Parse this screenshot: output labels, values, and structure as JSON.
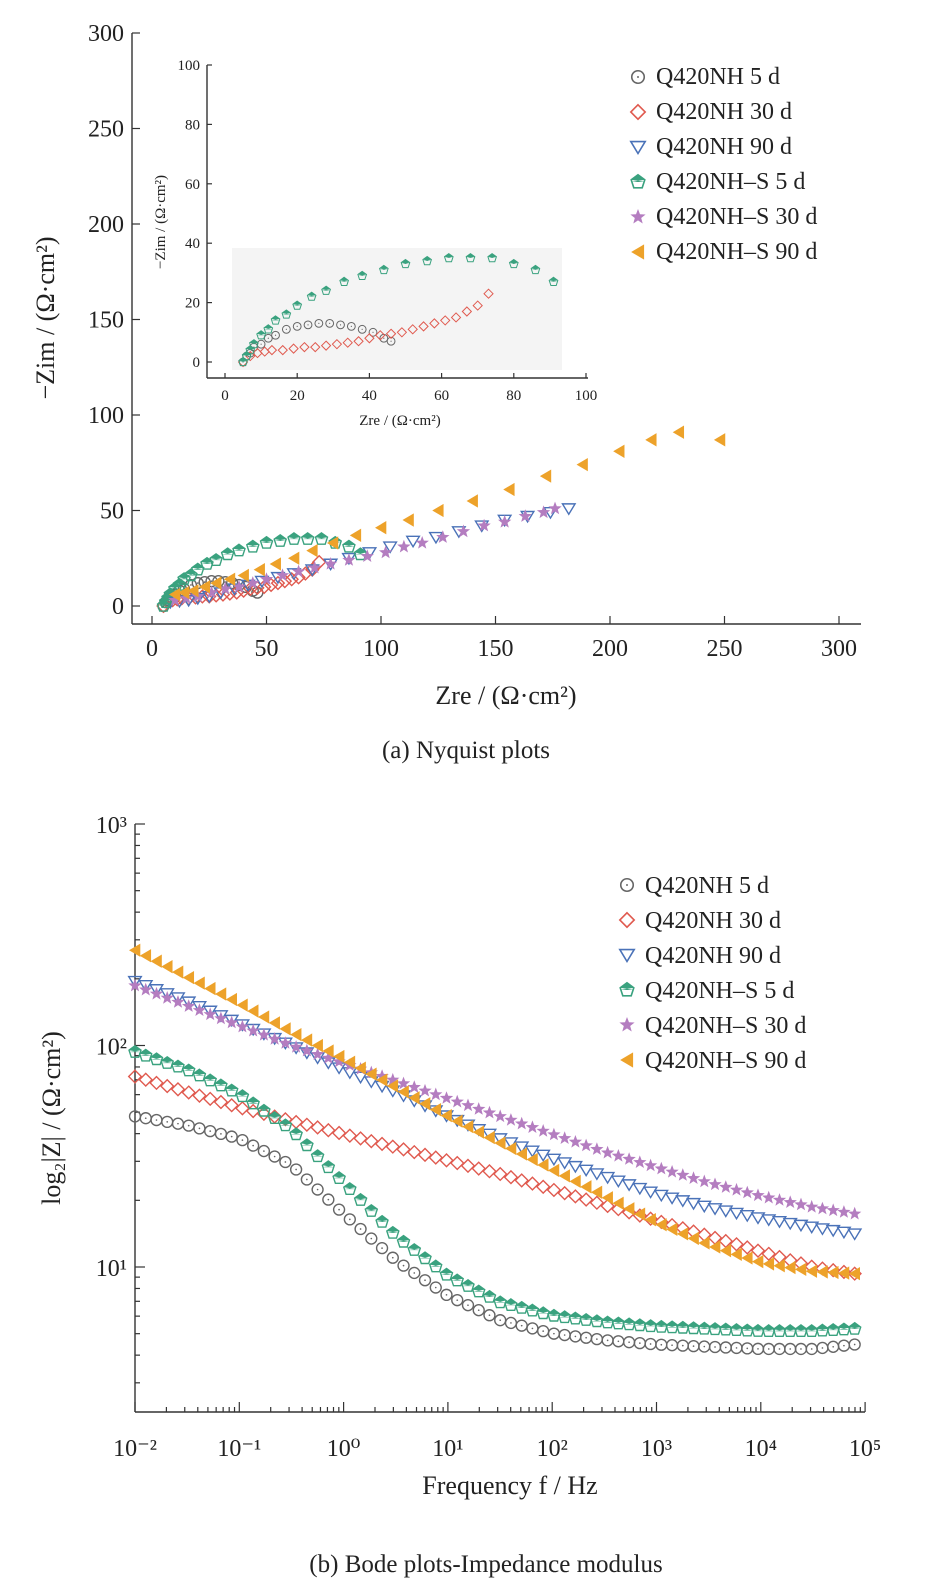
{
  "figure": {
    "caption_a": "(a) Nyquist plots",
    "caption_b": "(b) Bode plots-Impedance modulus"
  },
  "colors": {
    "Q420NH 5 d": "#666666",
    "Q420NH 30 d": "#e05a4f",
    "Q420NH 90 d": "#4a72b8",
    "Q420NH–S 5 d": "#3aa27f",
    "Q420NH–S 30 d": "#b47dc0",
    "Q420NH–S 90 d": "#eda22a"
  },
  "markers": {
    "Q420NH 5 d": "circle-open",
    "Q420NH 30 d": "diamond-open",
    "Q420NH 90 d": "triangle-down-open",
    "Q420NH–S 5 d": "pentagon-half-filled",
    "Q420NH–S 30 d": "star-filled",
    "Q420NH–S 90 d": "triangle-left-filled"
  },
  "chart_data": [
    {
      "type": "scatter",
      "id": "nyquist-main",
      "xlabel": "Zre / (Ω·cm²)",
      "ylabel": "−Zim / (Ω·cm²)",
      "xlim": [
        0,
        300
      ],
      "ylim": [
        0,
        300
      ],
      "xticks": [
        0,
        50,
        100,
        150,
        200,
        250,
        300
      ],
      "yticks": [
        0,
        50,
        100,
        150,
        200,
        250,
        300
      ],
      "legend_position": "top-right",
      "series": [
        {
          "name": "Q420NH 5 d",
          "x": [
            5,
            6,
            7,
            8,
            10,
            12,
            14,
            17,
            20,
            23,
            26,
            29,
            32,
            35,
            38,
            41,
            44,
            46
          ],
          "y": [
            0,
            2,
            3,
            5,
            6,
            8,
            9,
            11,
            12,
            12.5,
            13,
            13,
            12.5,
            12,
            11,
            10,
            8,
            7
          ]
        },
        {
          "name": "Q420NH 30 d",
          "x": [
            5,
            7,
            9,
            11,
            13,
            16,
            19,
            22,
            25,
            28,
            31,
            34,
            37,
            40,
            43,
            46,
            49,
            52,
            55,
            58,
            61,
            64,
            67,
            70,
            73
          ],
          "y": [
            0,
            2,
            3,
            3.5,
            4,
            4,
            4.5,
            5,
            5,
            5.5,
            6,
            6.5,
            7,
            8,
            9,
            9.5,
            10,
            11,
            12,
            13,
            14,
            15,
            17,
            19,
            23
          ]
        },
        {
          "name": "Q420NH 90 d",
          "x": [
            8,
            12,
            16,
            20,
            25,
            30,
            36,
            42,
            48,
            55,
            62,
            70,
            78,
            86,
            95,
            104,
            114,
            124,
            134,
            144,
            154,
            164,
            174,
            182
          ],
          "y": [
            2,
            2.5,
            3,
            4,
            5,
            7,
            9,
            11,
            13,
            15,
            17,
            19,
            22,
            25,
            28,
            31,
            34,
            36,
            39,
            42,
            45,
            47,
            49,
            51
          ]
        },
        {
          "name": "Q420NH–S 5 d",
          "x": [
            5,
            6,
            7,
            8,
            10,
            12,
            14,
            17,
            20,
            24,
            28,
            33,
            38,
            44,
            50,
            56,
            62,
            68,
            74,
            80,
            86,
            91
          ],
          "y": [
            0,
            2,
            4,
            6,
            9,
            11,
            14,
            16,
            19,
            22,
            24,
            27,
            29,
            31,
            33,
            34,
            35,
            35,
            35,
            33,
            31,
            27
          ]
        },
        {
          "name": "Q420NH–S 30 d",
          "x": [
            10,
            15,
            20,
            26,
            32,
            38,
            44,
            50,
            57,
            64,
            71,
            78,
            86,
            94,
            102,
            110,
            118,
            127,
            136,
            145,
            154,
            163,
            171,
            176
          ],
          "y": [
            3,
            4,
            5,
            7,
            9,
            10,
            12,
            14,
            16,
            18,
            20,
            22,
            24,
            26,
            28,
            31,
            33,
            36,
            39,
            42,
            44,
            47,
            49,
            51
          ]
        },
        {
          "name": "Q420NH–S 90 d",
          "x": [
            10,
            14,
            18,
            23,
            28,
            34,
            40,
            47,
            54,
            62,
            70,
            79,
            89,
            100,
            112,
            125,
            140,
            156,
            172,
            188,
            204,
            218,
            230,
            248
          ],
          "y": [
            6,
            7,
            8,
            10,
            12,
            14,
            16,
            19,
            22,
            25,
            29,
            33,
            37,
            41,
            45,
            50,
            55,
            61,
            68,
            74,
            81,
            87,
            91,
            87
          ]
        }
      ]
    },
    {
      "type": "scatter",
      "id": "nyquist-inset",
      "xlabel": "Zre / (Ω·cm²)",
      "ylabel": "−Zim / (Ω·cm²)",
      "xlim": [
        0,
        100
      ],
      "ylim": [
        0,
        100
      ],
      "xticks": [
        0,
        20,
        40,
        60,
        80,
        100
      ],
      "yticks": [
        0,
        20,
        40,
        60,
        80,
        100
      ],
      "series_shown": [
        "Q420NH 5 d",
        "Q420NH 30 d",
        "Q420NH–S 5 d"
      ]
    },
    {
      "type": "scatter",
      "id": "bode",
      "xlabel": "Frequency f / Hz",
      "ylabel": "log₂|Z| / (Ω·cm²)",
      "x_scale": "log",
      "y_scale": "log",
      "xlim": [
        0.01,
        100000
      ],
      "ylim": [
        2,
        1000
      ],
      "xtick_labels": [
        "10⁻²",
        "10⁻¹",
        "10⁰",
        "10¹",
        "10²",
        "10³",
        "10⁴",
        "10⁵"
      ],
      "ytick_labels": [
        "10¹",
        "10²",
        "10³"
      ],
      "legend_position": "top-right",
      "series": [
        {
          "name": "Q420NH 5 d",
          "logf": [
            -2,
            -1.5,
            -1,
            -0.5,
            0,
            0.5,
            1,
            1.5,
            2,
            2.5,
            3,
            3.5,
            4,
            4.5,
            4.9
          ],
          "logZ": [
            1.68,
            1.64,
            1.58,
            1.46,
            1.24,
            1.03,
            0.87,
            0.76,
            0.7,
            0.67,
            0.65,
            0.64,
            0.63,
            0.63,
            0.65
          ]
        },
        {
          "name": "Q420NH 30 d",
          "logf": [
            -2,
            -1.5,
            -1,
            -0.5,
            0,
            0.5,
            1,
            1.5,
            2,
            2.5,
            3,
            3.5,
            4,
            4.5,
            4.9
          ],
          "logZ": [
            1.86,
            1.79,
            1.72,
            1.66,
            1.6,
            1.54,
            1.48,
            1.42,
            1.35,
            1.28,
            1.21,
            1.14,
            1.07,
            1.0,
            0.97
          ]
        },
        {
          "name": "Q420NH 90 d",
          "logf": [
            -2,
            -1.5,
            -1,
            -0.5,
            0,
            0.5,
            1,
            1.5,
            2,
            2.5,
            3,
            3.5,
            4,
            4.5,
            4.9
          ],
          "logZ": [
            2.29,
            2.2,
            2.1,
            2.0,
            1.89,
            1.79,
            1.68,
            1.58,
            1.49,
            1.41,
            1.33,
            1.27,
            1.22,
            1.18,
            1.15
          ]
        },
        {
          "name": "Q420NH–S 5 d",
          "logf": [
            -2,
            -1.5,
            -1,
            -0.5,
            0,
            0.5,
            1,
            1.5,
            2,
            2.5,
            3,
            3.5,
            4,
            4.5,
            4.9
          ],
          "logZ": [
            1.97,
            1.89,
            1.78,
            1.62,
            1.38,
            1.14,
            0.96,
            0.84,
            0.78,
            0.75,
            0.73,
            0.72,
            0.71,
            0.71,
            0.72
          ]
        },
        {
          "name": "Q420NH–S 30 d",
          "logf": [
            -2,
            -1.5,
            -1,
            -0.5,
            0,
            0.5,
            1,
            1.5,
            2,
            2.5,
            3,
            3.5,
            4,
            4.5,
            4.9
          ],
          "logZ": [
            2.27,
            2.18,
            2.09,
            2.0,
            1.92,
            1.84,
            1.76,
            1.68,
            1.6,
            1.52,
            1.45,
            1.38,
            1.32,
            1.27,
            1.24
          ]
        },
        {
          "name": "Q420NH–S 90 d",
          "logf": [
            -2,
            -1.5,
            -1,
            -0.5,
            0,
            0.5,
            1,
            1.5,
            2,
            2.5,
            3,
            3.5,
            4,
            4.5,
            4.9
          ],
          "logZ": [
            2.43,
            2.31,
            2.19,
            2.06,
            1.94,
            1.81,
            1.68,
            1.56,
            1.44,
            1.32,
            1.2,
            1.1,
            1.02,
            0.98,
            0.97
          ]
        }
      ]
    }
  ]
}
